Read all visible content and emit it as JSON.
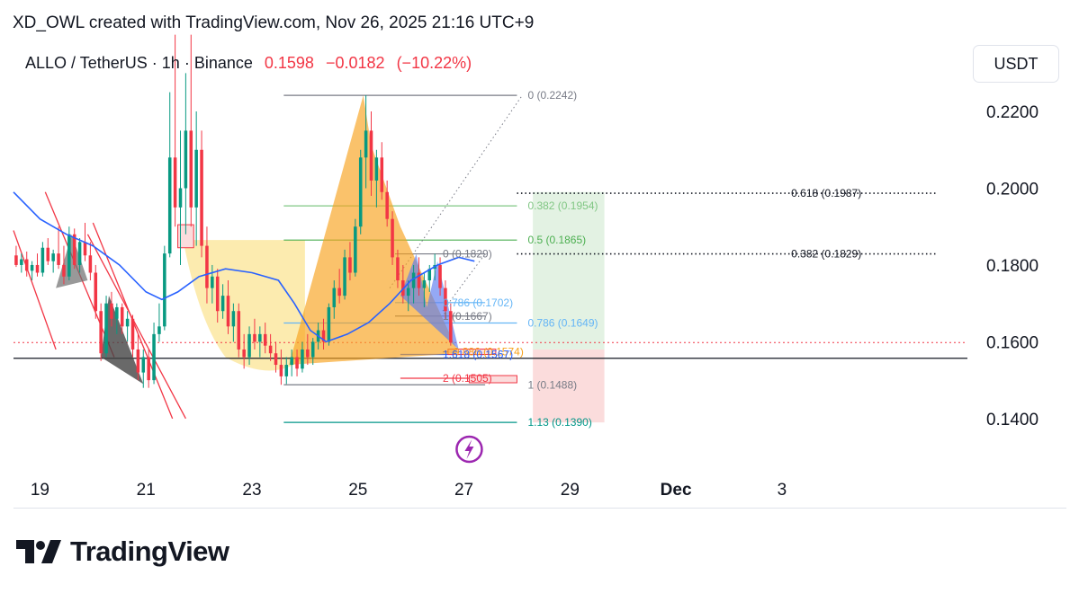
{
  "credit": "XD_OWL created with TradingView.com, Nov 26, 2025 21:16 UTC+9",
  "symbol": {
    "pair": "ALLO / TetherUS",
    "interval": "1h",
    "exchange": "Binance",
    "price": "0.1598",
    "change": "−0.0182",
    "change_pct": "(−10.22%)"
  },
  "currency_button": "USDT",
  "brand": {
    "name": "TradingView",
    "logo_icon": "tradingview-logo-icon"
  },
  "colors": {
    "down": "#f23645",
    "up": "#089981",
    "ma": "#2962ff",
    "pattern_orange": "#f7a21b",
    "pattern_blue": "#5b7bf0",
    "pattern_gray": "#6e6e6e",
    "cup_yellow": "#fbe7a1",
    "target_green": "#e3f2e3",
    "stop_red": "#fbdcdc",
    "purple": "#9c27b0"
  },
  "chart_data": {
    "type": "candlestick",
    "title": "",
    "y_ticks": [
      "0.2200",
      "0.2000",
      "0.1800",
      "0.1600",
      "0.1400"
    ],
    "y_tick_values": [
      0.22,
      0.2,
      0.18,
      0.16,
      0.14
    ],
    "ylim": [
      0.1285,
      0.2385
    ],
    "x_ticks": [
      "19",
      "21",
      "23",
      "25",
      "27",
      "29",
      "Dec",
      "3"
    ],
    "x_tick_days": [
      19,
      21,
      23,
      25,
      27,
      29,
      31,
      33
    ],
    "xlim_days": [
      18.5,
      36.5
    ],
    "last_price": 0.1598,
    "horizontal_line": 0.1557,
    "fib_levels": [
      {
        "label": "0 (0.2242)",
        "value": 0.2242,
        "color": "#787b86",
        "from": 23.6,
        "to": 28.0
      },
      {
        "label": "0.382 (0.1954)",
        "value": 0.1954,
        "color": "#81c784",
        "from": 23.6,
        "to": 28.0
      },
      {
        "label": "0.5 (0.1865)",
        "value": 0.1865,
        "color": "#4caf50",
        "from": 23.6,
        "to": 28.0
      },
      {
        "label": "0.786 (0.1649)",
        "value": 0.1649,
        "color": "#64b5f6",
        "from": 23.6,
        "to": 28.0
      },
      {
        "label": "1.13 (0.1390)",
        "value": 0.139,
        "color": "#009688",
        "from": 23.6,
        "to": 28.0
      },
      {
        "label": "0 (0.1829)",
        "value": 0.1829,
        "color": "#787b86",
        "from": 25.7,
        "to": 27.4
      },
      {
        "label": "0.786 (0.1702)",
        "value": 0.1702,
        "color": "#64b5f6",
        "from": 25.7,
        "to": 27.4
      },
      {
        "label": "1 (0.1667)",
        "value": 0.1667,
        "color": "#787b86",
        "from": 25.7,
        "to": 27.4
      },
      {
        "label": "0.886 (0.1574)",
        "value": 0.1574,
        "color": "#f7a21b",
        "from": 26.6,
        "to": 27.4
      },
      {
        "label": "1.618 (0.1567)",
        "value": 0.1567,
        "color": "#2962ff",
        "from": 25.8,
        "to": 27.4
      },
      {
        "label": "1 (0.1488)",
        "value": 0.1488,
        "color": "#787b86",
        "from": 23.6,
        "to": 27.4
      },
      {
        "label": "2 (0.1505)",
        "value": 0.1505,
        "color": "#f23645",
        "from": 25.8,
        "to": 27.4
      },
      {
        "label": "0.618 (0.1987)",
        "value": 0.1987,
        "color": "#131722",
        "from": 28.0,
        "to": 35.9
      },
      {
        "label": "0.382 (0.1829)",
        "value": 0.1829,
        "color": "#131722",
        "from": 28.0,
        "to": 35.9
      }
    ],
    "candles": [
      {
        "d": 18.55,
        "o": 0.1825,
        "h": 0.185,
        "l": 0.1795,
        "c": 0.18
      },
      {
        "d": 18.65,
        "o": 0.18,
        "h": 0.183,
        "l": 0.178,
        "c": 0.1815
      },
      {
        "d": 18.75,
        "o": 0.1815,
        "h": 0.1835,
        "l": 0.177,
        "c": 0.1785
      },
      {
        "d": 18.85,
        "o": 0.1785,
        "h": 0.181,
        "l": 0.176,
        "c": 0.18
      },
      {
        "d": 18.95,
        "o": 0.18,
        "h": 0.183,
        "l": 0.177,
        "c": 0.178
      },
      {
        "d": 19.05,
        "o": 0.178,
        "h": 0.186,
        "l": 0.177,
        "c": 0.1845
      },
      {
        "d": 19.15,
        "o": 0.1845,
        "h": 0.187,
        "l": 0.18,
        "c": 0.181
      },
      {
        "d": 19.25,
        "o": 0.181,
        "h": 0.184,
        "l": 0.178,
        "c": 0.183
      },
      {
        "d": 19.35,
        "o": 0.183,
        "h": 0.19,
        "l": 0.179,
        "c": 0.18
      },
      {
        "d": 19.45,
        "o": 0.18,
        "h": 0.185,
        "l": 0.175,
        "c": 0.177
      },
      {
        "d": 19.55,
        "o": 0.177,
        "h": 0.19,
        "l": 0.176,
        "c": 0.188
      },
      {
        "d": 19.65,
        "o": 0.188,
        "h": 0.1895,
        "l": 0.179,
        "c": 0.18
      },
      {
        "d": 19.75,
        "o": 0.18,
        "h": 0.187,
        "l": 0.178,
        "c": 0.186
      },
      {
        "d": 19.85,
        "o": 0.186,
        "h": 0.191,
        "l": 0.181,
        "c": 0.1825
      },
      {
        "d": 19.95,
        "o": 0.1825,
        "h": 0.186,
        "l": 0.176,
        "c": 0.178
      },
      {
        "d": 20.05,
        "o": 0.178,
        "h": 0.18,
        "l": 0.166,
        "c": 0.168
      },
      {
        "d": 20.15,
        "o": 0.168,
        "h": 0.17,
        "l": 0.155,
        "c": 0.157
      },
      {
        "d": 20.25,
        "o": 0.157,
        "h": 0.172,
        "l": 0.156,
        "c": 0.17
      },
      {
        "d": 20.35,
        "o": 0.17,
        "h": 0.173,
        "l": 0.164,
        "c": 0.166
      },
      {
        "d": 20.45,
        "o": 0.166,
        "h": 0.17,
        "l": 0.162,
        "c": 0.169
      },
      {
        "d": 20.55,
        "o": 0.169,
        "h": 0.17,
        "l": 0.162,
        "c": 0.164
      },
      {
        "d": 20.65,
        "o": 0.164,
        "h": 0.168,
        "l": 0.16,
        "c": 0.166
      },
      {
        "d": 20.75,
        "o": 0.166,
        "h": 0.167,
        "l": 0.156,
        "c": 0.158
      },
      {
        "d": 20.85,
        "o": 0.158,
        "h": 0.162,
        "l": 0.15,
        "c": 0.152
      },
      {
        "d": 20.95,
        "o": 0.152,
        "h": 0.158,
        "l": 0.148,
        "c": 0.156
      },
      {
        "d": 21.05,
        "o": 0.156,
        "h": 0.158,
        "l": 0.148,
        "c": 0.15
      },
      {
        "d": 21.15,
        "o": 0.15,
        "h": 0.165,
        "l": 0.149,
        "c": 0.162
      },
      {
        "d": 21.25,
        "o": 0.162,
        "h": 0.17,
        "l": 0.16,
        "c": 0.164
      },
      {
        "d": 21.35,
        "o": 0.164,
        "h": 0.185,
        "l": 0.163,
        "c": 0.183
      },
      {
        "d": 21.45,
        "o": 0.183,
        "h": 0.225,
        "l": 0.182,
        "c": 0.208
      },
      {
        "d": 21.55,
        "o": 0.208,
        "h": 0.24,
        "l": 0.19,
        "c": 0.195
      },
      {
        "d": 21.65,
        "o": 0.195,
        "h": 0.215,
        "l": 0.18,
        "c": 0.2
      },
      {
        "d": 21.75,
        "o": 0.2,
        "h": 0.23,
        "l": 0.188,
        "c": 0.215
      },
      {
        "d": 21.85,
        "o": 0.215,
        "h": 0.24,
        "l": 0.19,
        "c": 0.195
      },
      {
        "d": 21.95,
        "o": 0.195,
        "h": 0.22,
        "l": 0.185,
        "c": 0.21
      },
      {
        "d": 22.05,
        "o": 0.21,
        "h": 0.215,
        "l": 0.182,
        "c": 0.185
      },
      {
        "d": 22.15,
        "o": 0.185,
        "h": 0.19,
        "l": 0.17,
        "c": 0.174
      },
      {
        "d": 22.25,
        "o": 0.174,
        "h": 0.18,
        "l": 0.17,
        "c": 0.177
      },
      {
        "d": 22.35,
        "o": 0.177,
        "h": 0.179,
        "l": 0.165,
        "c": 0.168
      },
      {
        "d": 22.45,
        "o": 0.168,
        "h": 0.175,
        "l": 0.166,
        "c": 0.172
      },
      {
        "d": 22.55,
        "o": 0.172,
        "h": 0.176,
        "l": 0.162,
        "c": 0.164
      },
      {
        "d": 22.65,
        "o": 0.164,
        "h": 0.17,
        "l": 0.16,
        "c": 0.168
      },
      {
        "d": 22.75,
        "o": 0.168,
        "h": 0.17,
        "l": 0.156,
        "c": 0.158
      },
      {
        "d": 22.85,
        "o": 0.158,
        "h": 0.162,
        "l": 0.153,
        "c": 0.156
      },
      {
        "d": 22.95,
        "o": 0.156,
        "h": 0.164,
        "l": 0.154,
        "c": 0.162
      },
      {
        "d": 23.05,
        "o": 0.162,
        "h": 0.166,
        "l": 0.158,
        "c": 0.16
      },
      {
        "d": 23.15,
        "o": 0.16,
        "h": 0.164,
        "l": 0.156,
        "c": 0.162
      },
      {
        "d": 23.25,
        "o": 0.162,
        "h": 0.165,
        "l": 0.157,
        "c": 0.159
      },
      {
        "d": 23.35,
        "o": 0.159,
        "h": 0.162,
        "l": 0.155,
        "c": 0.157
      },
      {
        "d": 23.45,
        "o": 0.157,
        "h": 0.16,
        "l": 0.152,
        "c": 0.154
      },
      {
        "d": 23.55,
        "o": 0.154,
        "h": 0.158,
        "l": 0.1488,
        "c": 0.151
      },
      {
        "d": 23.65,
        "o": 0.151,
        "h": 0.156,
        "l": 0.149,
        "c": 0.154
      },
      {
        "d": 23.75,
        "o": 0.154,
        "h": 0.158,
        "l": 0.151,
        "c": 0.156
      },
      {
        "d": 23.85,
        "o": 0.156,
        "h": 0.158,
        "l": 0.151,
        "c": 0.153
      },
      {
        "d": 23.95,
        "o": 0.153,
        "h": 0.16,
        "l": 0.152,
        "c": 0.158
      },
      {
        "d": 24.05,
        "o": 0.158,
        "h": 0.162,
        "l": 0.154,
        "c": 0.156
      },
      {
        "d": 24.15,
        "o": 0.156,
        "h": 0.161,
        "l": 0.154,
        "c": 0.16
      },
      {
        "d": 24.25,
        "o": 0.16,
        "h": 0.165,
        "l": 0.158,
        "c": 0.163
      },
      {
        "d": 24.35,
        "o": 0.163,
        "h": 0.166,
        "l": 0.158,
        "c": 0.16
      },
      {
        "d": 24.45,
        "o": 0.16,
        "h": 0.17,
        "l": 0.159,
        "c": 0.169
      },
      {
        "d": 24.55,
        "o": 0.169,
        "h": 0.176,
        "l": 0.166,
        "c": 0.174
      },
      {
        "d": 24.65,
        "o": 0.174,
        "h": 0.179,
        "l": 0.17,
        "c": 0.172
      },
      {
        "d": 24.75,
        "o": 0.172,
        "h": 0.184,
        "l": 0.171,
        "c": 0.182
      },
      {
        "d": 24.85,
        "o": 0.182,
        "h": 0.186,
        "l": 0.176,
        "c": 0.178
      },
      {
        "d": 24.95,
        "o": 0.178,
        "h": 0.192,
        "l": 0.177,
        "c": 0.19
      },
      {
        "d": 25.05,
        "o": 0.19,
        "h": 0.21,
        "l": 0.188,
        "c": 0.208
      },
      {
        "d": 25.15,
        "o": 0.208,
        "h": 0.2242,
        "l": 0.2,
        "c": 0.215
      },
      {
        "d": 25.25,
        "o": 0.215,
        "h": 0.22,
        "l": 0.198,
        "c": 0.202
      },
      {
        "d": 25.35,
        "o": 0.202,
        "h": 0.21,
        "l": 0.195,
        "c": 0.208
      },
      {
        "d": 25.45,
        "o": 0.208,
        "h": 0.212,
        "l": 0.197,
        "c": 0.199
      },
      {
        "d": 25.55,
        "o": 0.199,
        "h": 0.202,
        "l": 0.19,
        "c": 0.192
      },
      {
        "d": 25.65,
        "o": 0.192,
        "h": 0.194,
        "l": 0.18,
        "c": 0.182
      },
      {
        "d": 25.75,
        "o": 0.182,
        "h": 0.184,
        "l": 0.174,
        "c": 0.176
      },
      {
        "d": 25.85,
        "o": 0.176,
        "h": 0.18,
        "l": 0.17,
        "c": 0.172
      },
      {
        "d": 25.95,
        "o": 0.172,
        "h": 0.176,
        "l": 0.168,
        "c": 0.174
      },
      {
        "d": 26.05,
        "o": 0.174,
        "h": 0.18,
        "l": 0.17,
        "c": 0.178
      },
      {
        "d": 26.15,
        "o": 0.178,
        "h": 0.182,
        "l": 0.172,
        "c": 0.174
      },
      {
        "d": 26.25,
        "o": 0.174,
        "h": 0.178,
        "l": 0.169,
        "c": 0.176
      },
      {
        "d": 26.35,
        "o": 0.176,
        "h": 0.18,
        "l": 0.173,
        "c": 0.179
      },
      {
        "d": 26.45,
        "o": 0.179,
        "h": 0.1829,
        "l": 0.176,
        "c": 0.18
      },
      {
        "d": 26.55,
        "o": 0.18,
        "h": 0.182,
        "l": 0.172,
        "c": 0.174
      },
      {
        "d": 26.65,
        "o": 0.174,
        "h": 0.176,
        "l": 0.166,
        "c": 0.168
      },
      {
        "d": 26.75,
        "o": 0.168,
        "h": 0.17,
        "l": 0.159,
        "c": 0.1598
      }
    ],
    "moving_average": [
      [
        18.5,
        0.199
      ],
      [
        19.0,
        0.192
      ],
      [
        19.5,
        0.188
      ],
      [
        20.0,
        0.185
      ],
      [
        20.5,
        0.18
      ],
      [
        21.0,
        0.173
      ],
      [
        21.3,
        0.171
      ],
      [
        21.6,
        0.173
      ],
      [
        22.0,
        0.177
      ],
      [
        22.5,
        0.179
      ],
      [
        23.0,
        0.178
      ],
      [
        23.5,
        0.176
      ],
      [
        23.8,
        0.17
      ],
      [
        24.1,
        0.163
      ],
      [
        24.4,
        0.16
      ],
      [
        24.8,
        0.162
      ],
      [
        25.2,
        0.165
      ],
      [
        25.6,
        0.17
      ],
      [
        26.0,
        0.176
      ],
      [
        26.5,
        0.18
      ],
      [
        26.9,
        0.182
      ],
      [
        27.2,
        0.181
      ]
    ]
  }
}
